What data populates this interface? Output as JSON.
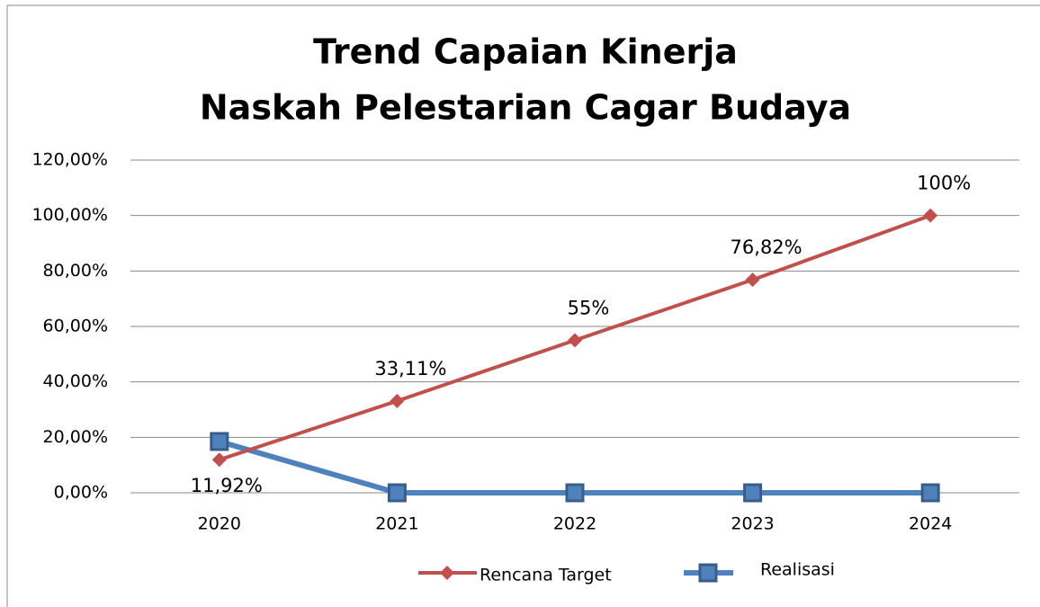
{
  "chart_data": {
    "type": "line",
    "title": [
      "Trend Capaian Kinerja",
      "Naskah Pelestarian Cagar Budaya"
    ],
    "categories": [
      "2020",
      "2021",
      "2022",
      "2023",
      "2024"
    ],
    "series": [
      {
        "name": "Rencana Target",
        "color": "#c0504d",
        "marker": "diamond",
        "values": [
          11.92,
          33.11,
          55,
          76.82,
          100
        ],
        "value_labels": [
          "11,92%",
          "33,11%",
          "55%",
          "76,82%",
          "100%"
        ]
      },
      {
        "name": "Realisasi",
        "color": "#4f81bd",
        "marker": "square",
        "values": [
          18.5,
          0,
          0,
          0,
          0
        ]
      }
    ],
    "ylim": [
      0,
      120
    ],
    "yticks": [
      {
        "value": 0,
        "label": "0,00%"
      },
      {
        "value": 20,
        "label": "20,00%"
      },
      {
        "value": 40,
        "label": "40,00%"
      },
      {
        "value": 60,
        "label": "60,00%"
      },
      {
        "value": 80,
        "label": "80,00%"
      },
      {
        "value": 100,
        "label": "100,00%"
      },
      {
        "value": 120,
        "label": "120,00%"
      }
    ],
    "grid": true,
    "legend": "bottom"
  }
}
